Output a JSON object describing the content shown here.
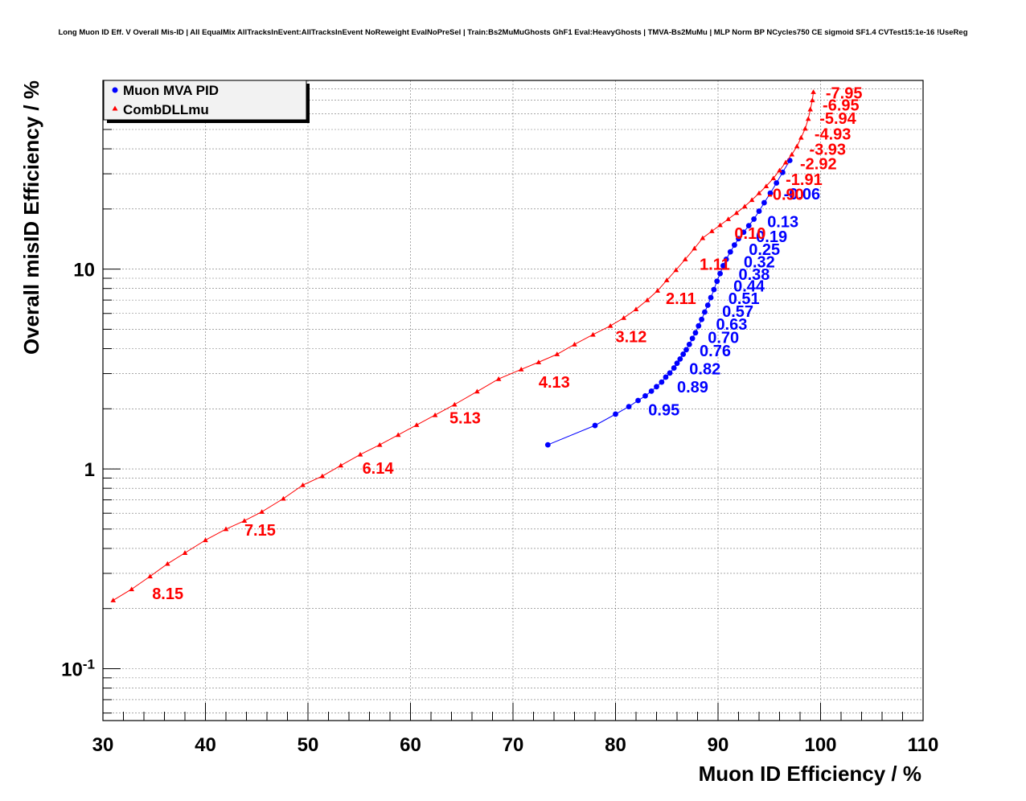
{
  "title": "Long Muon ID Eff. V Overall Mis-ID | All EqualMix AllTracksInEvent:AllTracksInEvent NoReweight EvalNoPreSel | Train:Bs2MuMuGhosts GhF1 Eval:HeavyGhosts | TMVA-Bs2MuMu | MLP Norm BP NCycles750 CE sigmoid SF1.4 CVTest15:1e-16 !UseReg",
  "chart_data": {
    "type": "line",
    "title": "Long Muon ID Eff. V Overall Mis-ID | All EqualMix AllTracksInEvent:AllTracksInEvent NoReweight EvalNoPreSel | Train:Bs2MuMuGhosts GhF1 Eval:HeavyGhosts | TMVA-Bs2MuMu | MLP Norm BP NCycles750 CE sigmoid SF1.4 CVTest15:1e-16 !UseReg",
    "xlabel": "Muon ID Efficiency / %",
    "ylabel": "Overall misID Efficiency / %",
    "xlim": [
      30,
      110
    ],
    "ylim": [
      0.055,
      88
    ],
    "yscale": "log",
    "x_ticks": [
      "30",
      "40",
      "50",
      "60",
      "70",
      "80",
      "90",
      "100",
      "110"
    ],
    "y_ticks": [
      {
        "value": 0.1,
        "base": "10",
        "exp": "-1"
      },
      {
        "value": 1,
        "base": "1",
        "exp": ""
      },
      {
        "value": 10,
        "base": "10",
        "exp": ""
      }
    ],
    "grid": true,
    "legend_position": "top-left",
    "series": [
      {
        "name": "Muon MVA PID",
        "color": "#0000ff",
        "marker": "circle",
        "points": [
          [
            73.4,
            1.32
          ],
          [
            78.0,
            1.65
          ],
          [
            80.0,
            1.88
          ],
          [
            81.3,
            2.05
          ],
          [
            82.2,
            2.2
          ],
          [
            82.9,
            2.32
          ],
          [
            83.5,
            2.45
          ],
          [
            84.0,
            2.58
          ],
          [
            84.5,
            2.72
          ],
          [
            84.9,
            2.88
          ],
          [
            85.3,
            3.02
          ],
          [
            85.7,
            3.2
          ],
          [
            86.0,
            3.38
          ],
          [
            86.3,
            3.55
          ],
          [
            86.6,
            3.75
          ],
          [
            86.9,
            3.95
          ],
          [
            87.2,
            4.2
          ],
          [
            87.5,
            4.5
          ],
          [
            87.8,
            4.8
          ],
          [
            88.1,
            5.2
          ],
          [
            88.4,
            5.6
          ],
          [
            88.7,
            6.1
          ],
          [
            89.0,
            6.6
          ],
          [
            89.3,
            7.2
          ],
          [
            89.6,
            7.9
          ],
          [
            89.9,
            8.7
          ],
          [
            90.2,
            9.5
          ],
          [
            90.5,
            10.4
          ],
          [
            90.8,
            11.2
          ],
          [
            91.2,
            12.2
          ],
          [
            91.6,
            13.2
          ],
          [
            92.0,
            14.2
          ],
          [
            92.5,
            15.3
          ],
          [
            93.0,
            16.5
          ],
          [
            93.5,
            17.8
          ],
          [
            94.0,
            19.5
          ],
          [
            94.5,
            21.5
          ],
          [
            95.1,
            24.0
          ],
          [
            95.7,
            27.0
          ],
          [
            96.3,
            30.5
          ],
          [
            97.0,
            35.0
          ]
        ]
      },
      {
        "name": "CombDLLmu",
        "color": "#ff0000",
        "marker": "triangle",
        "points": [
          [
            31.0,
            0.22
          ],
          [
            32.8,
            0.25
          ],
          [
            34.6,
            0.29
          ],
          [
            36.3,
            0.335
          ],
          [
            38.0,
            0.38
          ],
          [
            40.0,
            0.44
          ],
          [
            42.0,
            0.5
          ],
          [
            43.8,
            0.55
          ],
          [
            45.5,
            0.61
          ],
          [
            47.6,
            0.71
          ],
          [
            49.5,
            0.83
          ],
          [
            51.4,
            0.92
          ],
          [
            53.2,
            1.04
          ],
          [
            55.1,
            1.18
          ],
          [
            57.0,
            1.32
          ],
          [
            58.8,
            1.48
          ],
          [
            60.6,
            1.66
          ],
          [
            62.4,
            1.86
          ],
          [
            64.3,
            2.1
          ],
          [
            66.5,
            2.44
          ],
          [
            68.6,
            2.82
          ],
          [
            70.8,
            3.15
          ],
          [
            72.5,
            3.42
          ],
          [
            74.3,
            3.75
          ],
          [
            76.0,
            4.2
          ],
          [
            77.8,
            4.7
          ],
          [
            79.5,
            5.2
          ],
          [
            80.8,
            5.7
          ],
          [
            82.0,
            6.3
          ],
          [
            83.1,
            7.0
          ],
          [
            84.1,
            7.8
          ],
          [
            85.0,
            8.8
          ],
          [
            85.9,
            9.9
          ],
          [
            86.8,
            11.2
          ],
          [
            87.7,
            12.7
          ],
          [
            88.5,
            14.3
          ],
          [
            89.4,
            15.5
          ],
          [
            90.2,
            16.6
          ],
          [
            91.0,
            17.8
          ],
          [
            91.8,
            19.1
          ],
          [
            92.6,
            20.6
          ],
          [
            93.3,
            22.2
          ],
          [
            94.0,
            24.0
          ],
          [
            94.7,
            26.0
          ],
          [
            95.4,
            28.5
          ],
          [
            96.0,
            31.2
          ],
          [
            96.6,
            34.2
          ],
          [
            97.2,
            37.5
          ],
          [
            97.7,
            41.2
          ],
          [
            98.1,
            45.5
          ],
          [
            98.5,
            50.5
          ],
          [
            98.8,
            56.5
          ],
          [
            99.0,
            63.0
          ],
          [
            99.2,
            70.0
          ],
          [
            99.3,
            77.0
          ]
        ]
      }
    ],
    "annotations": [
      {
        "series": "Muon MVA PID",
        "text": "0.95",
        "x": 83.2,
        "y": 2.0
      },
      {
        "series": "Muon MVA PID",
        "text": "0.89",
        "x": 86.0,
        "y": 2.6
      },
      {
        "series": "Muon MVA PID",
        "text": "0.82",
        "x": 87.2,
        "y": 3.2
      },
      {
        "series": "Muon MVA PID",
        "text": "0.76",
        "x": 88.2,
        "y": 3.95
      },
      {
        "series": "Muon MVA PID",
        "text": "0.70",
        "x": 89.0,
        "y": 4.6
      },
      {
        "series": "Muon MVA PID",
        "text": "0.63",
        "x": 89.8,
        "y": 5.35
      },
      {
        "series": "Muon MVA PID",
        "text": "0.57",
        "x": 90.4,
        "y": 6.2
      },
      {
        "series": "Muon MVA PID",
        "text": "0.51",
        "x": 91.0,
        "y": 7.2
      },
      {
        "series": "Muon MVA PID",
        "text": "0.44",
        "x": 91.5,
        "y": 8.3
      },
      {
        "series": "Muon MVA PID",
        "text": "0.38",
        "x": 92.0,
        "y": 9.5
      },
      {
        "series": "Muon MVA PID",
        "text": "0.32",
        "x": 92.5,
        "y": 11.0
      },
      {
        "series": "Muon MVA PID",
        "text": "0.25",
        "x": 93.0,
        "y": 12.7
      },
      {
        "series": "Muon MVA PID",
        "text": "0.19",
        "x": 93.7,
        "y": 14.7
      },
      {
        "series": "Muon MVA PID",
        "text": "0.13",
        "x": 94.8,
        "y": 17.5
      },
      {
        "series": "Muon MVA PID",
        "text": "-0.06",
        "x": 96.4,
        "y": 24.0
      },
      {
        "series": "CombDLLmu",
        "text": "8.15",
        "x": 34.8,
        "y": 0.24
      },
      {
        "series": "CombDLLmu",
        "text": "7.15",
        "x": 43.8,
        "y": 0.5
      },
      {
        "series": "CombDLLmu",
        "text": "6.14",
        "x": 55.3,
        "y": 1.02
      },
      {
        "series": "CombDLLmu",
        "text": "5.13",
        "x": 63.8,
        "y": 1.82
      },
      {
        "series": "CombDLLmu",
        "text": "4.13",
        "x": 72.5,
        "y": 2.75
      },
      {
        "series": "CombDLLmu",
        "text": "3.12",
        "x": 80.0,
        "y": 4.65
      },
      {
        "series": "CombDLLmu",
        "text": "2.11",
        "x": 84.9,
        "y": 7.2
      },
      {
        "series": "CombDLLmu",
        "text": "1.11",
        "x": 88.2,
        "y": 10.7
      },
      {
        "series": "CombDLLmu",
        "text": "0.10",
        "x": 91.6,
        "y": 15.3
      },
      {
        "series": "CombDLLmu",
        "text": "-0.90",
        "x": 94.8,
        "y": 23.9
      },
      {
        "series": "CombDLLmu",
        "text": "-1.91",
        "x": 96.6,
        "y": 28.4
      },
      {
        "series": "CombDLLmu",
        "text": "-2.92",
        "x": 98.0,
        "y": 34.0
      },
      {
        "series": "CombDLLmu",
        "text": "-3.93",
        "x": 98.9,
        "y": 40.3
      },
      {
        "series": "CombDLLmu",
        "text": "-4.93",
        "x": 99.4,
        "y": 48.0
      },
      {
        "series": "CombDLLmu",
        "text": "-5.94",
        "x": 99.9,
        "y": 57.5
      },
      {
        "series": "CombDLLmu",
        "text": "-6.95",
        "x": 100.2,
        "y": 67.0
      },
      {
        "series": "CombDLLmu",
        "text": "-7.95",
        "x": 100.5,
        "y": 77.0
      }
    ]
  }
}
